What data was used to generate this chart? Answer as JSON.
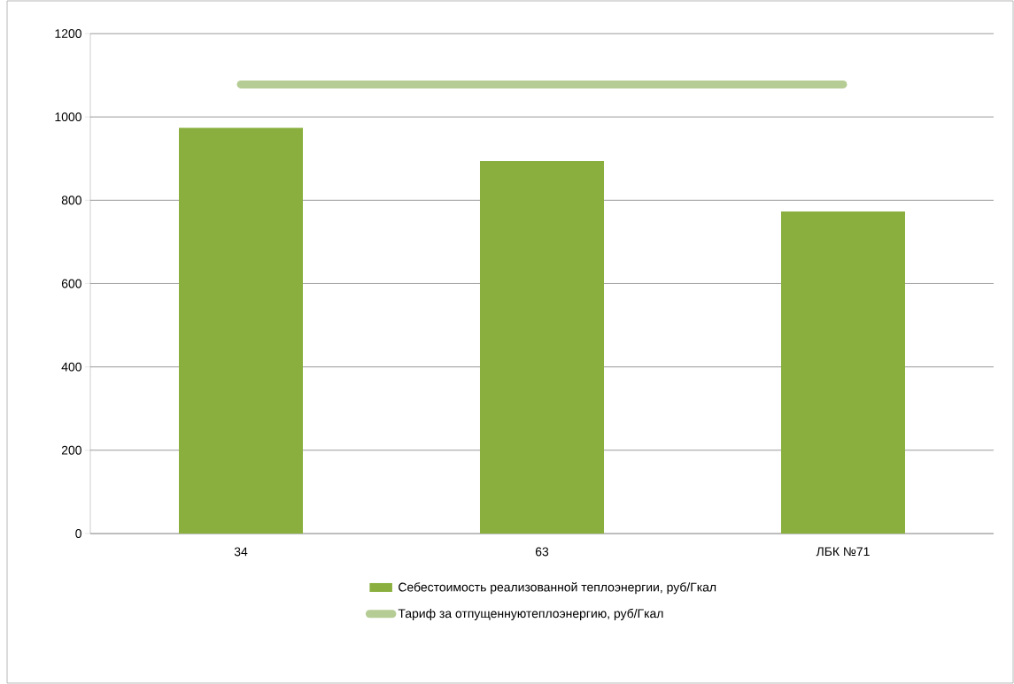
{
  "chart_data": {
    "type": "bar",
    "categories": [
      "34",
      "63",
      "ЛБК №71"
    ],
    "series": [
      {
        "name": "Себестоимость реализованной теплоэнергии, руб/Гкал",
        "color": "#8aaf3e",
        "values": [
          974,
          894,
          773
        ]
      },
      {
        "name": "Тариф за отпущеннуютеплоэнергию, руб/Гкал",
        "type": "line",
        "color": "#b5cc94",
        "values": [
          1078,
          1078,
          1078
        ]
      }
    ],
    "ylim": [
      0,
      1200
    ],
    "yticks": [
      0,
      200,
      400,
      600,
      800,
      1000,
      1200
    ],
    "grid": "y",
    "legend": "bottom"
  }
}
